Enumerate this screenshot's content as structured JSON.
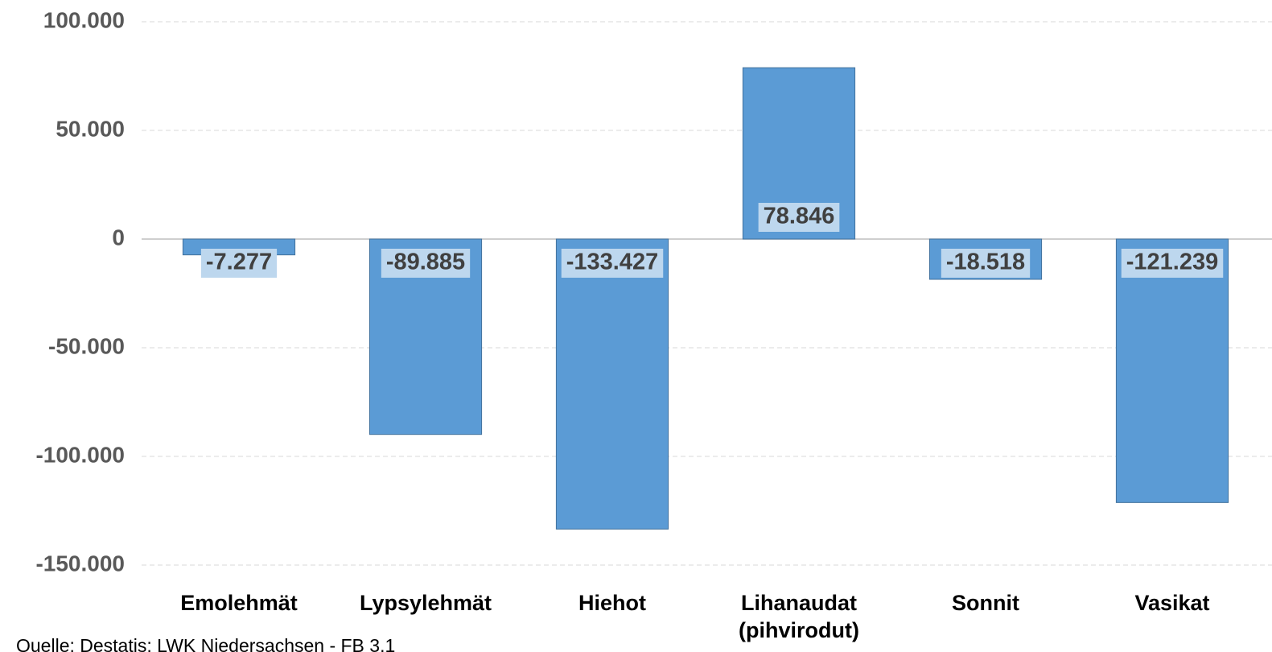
{
  "chart_data": {
    "type": "bar",
    "categories": [
      "Emolehmät",
      "Lypsylehmät",
      "Hiehot",
      "Lihanaudat (pihvirodut)",
      "Sonnit",
      "Vasikat"
    ],
    "values": [
      -7277,
      -89885,
      -133427,
      78846,
      -18518,
      -121239
    ],
    "value_labels": [
      "-7.277",
      "-89.885",
      "-133.427",
      "78.846",
      "-18.518",
      "-121.239"
    ],
    "color": "#5b9bd5",
    "ylim": [
      -150000,
      100000
    ],
    "yticks": [
      {
        "value": -150000,
        "label": "-150.000"
      },
      {
        "value": -100000,
        "label": "-100.000"
      },
      {
        "value": -50000,
        "label": "-50.000"
      },
      0,
      {
        "value": 50000,
        "label": "50.000"
      },
      {
        "value": 100000,
        "label": "100.000"
      }
    ],
    "grid": true,
    "source": "Quelle: Destatis; LWK Niedersachsen - FB 3.1"
  }
}
